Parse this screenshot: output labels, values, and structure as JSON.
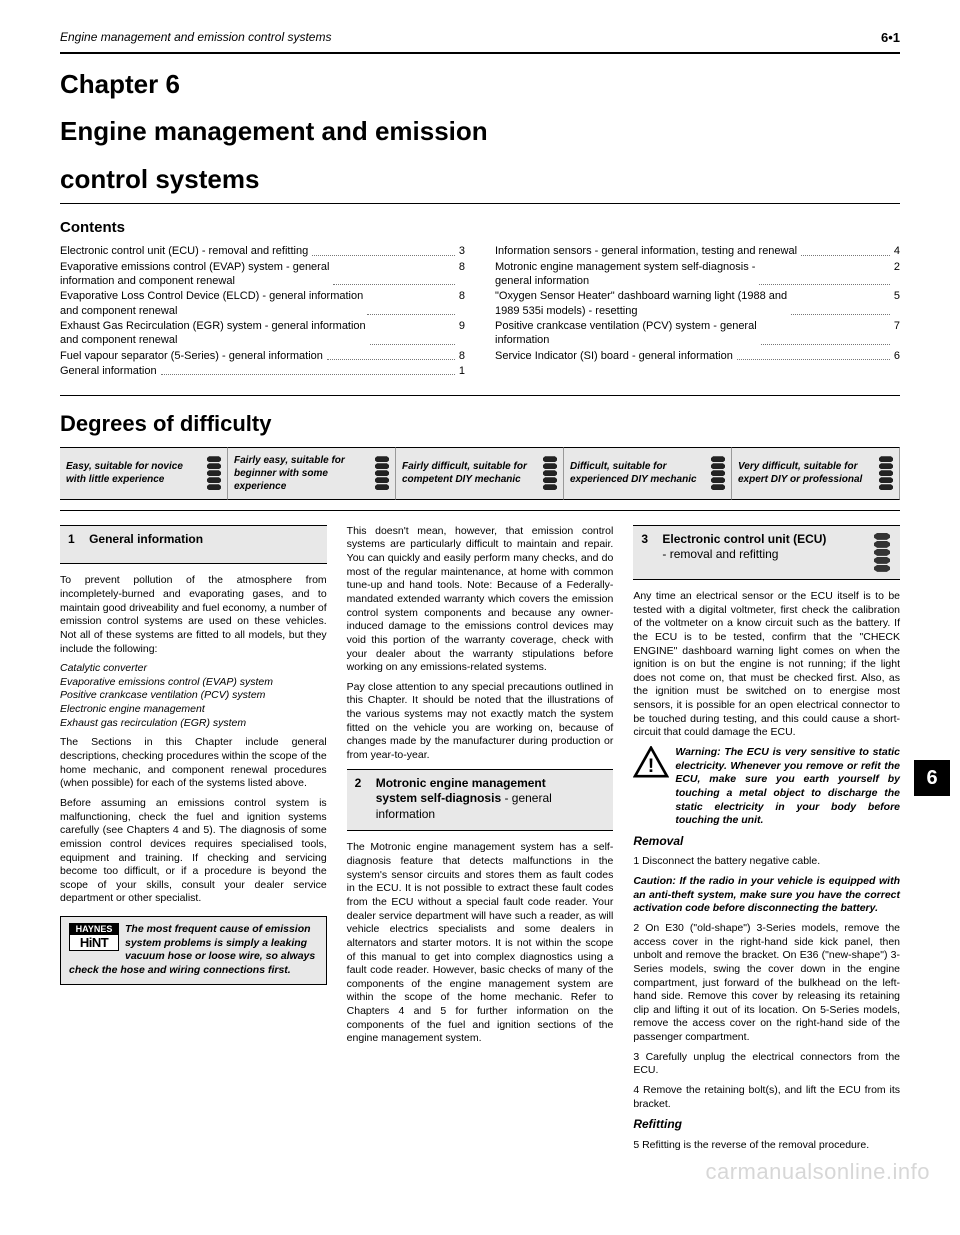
{
  "header": {
    "running": "Engine management and emission control systems",
    "page_ref": "6•1"
  },
  "chapter": {
    "number": "Chapter 6",
    "title_line1": "Engine management and emission",
    "title_line2": "control systems"
  },
  "contents": {
    "heading": "Contents",
    "left": [
      {
        "label": "Electronic control unit (ECU) - removal and refitting",
        "num": "3"
      },
      {
        "label": "Evaporative emissions control (EVAP) system - general\n   information and component renewal",
        "num": "8"
      },
      {
        "label": "Evaporative Loss Control Device (ELCD) - general information\n   and component renewal",
        "num": "8"
      },
      {
        "label": "Exhaust Gas Recirculation (EGR) system - general information\n   and component renewal",
        "num": "9"
      },
      {
        "label": "Fuel vapour separator (5-Series) - general information",
        "num": "8"
      },
      {
        "label": "General information",
        "num": "1"
      }
    ],
    "right": [
      {
        "label": "Information sensors - general information, testing and renewal",
        "num": "4"
      },
      {
        "label": "Motronic engine management system self-diagnosis -\n   general information",
        "num": "2"
      },
      {
        "label": "\"Oxygen Sensor Heater\" dashboard warning light (1988 and\n   1989 535i models) - resetting",
        "num": "5"
      },
      {
        "label": "Positive crankcase ventilation (PCV) system - general\n   information",
        "num": "7"
      },
      {
        "label": "Service Indicator (SI) board - general information",
        "num": "6"
      }
    ]
  },
  "difficulty": {
    "heading": "Degrees of difficulty",
    "levels": [
      {
        "text": "Easy, suitable for novice with little experience",
        "wrenches": 1
      },
      {
        "text": "Fairly easy, suitable for beginner with some experience",
        "wrenches": 2
      },
      {
        "text": "Fairly difficult, suitable for competent DIY mechanic",
        "wrenches": 3
      },
      {
        "text": "Difficult, suitable for experienced DIY mechanic",
        "wrenches": 4
      },
      {
        "text": "Very difficult, suitable for expert DIY or professional",
        "wrenches": 5
      }
    ]
  },
  "sections": {
    "s1": {
      "num": "1",
      "title": "General information"
    },
    "s2": {
      "num": "2",
      "title_bold": "Motronic engine management system self-diagnosis",
      "title_plain": " - general information"
    },
    "s3": {
      "num": "3",
      "title_bold": "Electronic control unit (ECU)",
      "title_plain": "- removal and refitting"
    }
  },
  "col1": {
    "p1": "To prevent pollution of the atmosphere from incompletely-burned and evaporating gases, and to maintain good driveability and fuel economy, a number of emission control systems are used on these vehicles. Not all of these systems are fitted to all models, but they include the following:",
    "list": "Catalytic converter\nEvaporative emissions control (EVAP) system\nPositive crankcase ventilation (PCV) system\nElectronic engine management\nExhaust gas recirculation (EGR) system",
    "p2": "The Sections in this Chapter include general descriptions, checking procedures within the scope of the home mechanic, and component renewal procedures (when possible) for each of the systems listed above.",
    "p3": "Before assuming an emissions control system is malfunctioning, check the fuel and ignition systems carefully (see Chapters 4 and 5). The diagnosis of some emission control devices requires specialised tools, equipment and training. If checking and servicing become too difficult, or if a procedure is beyond the scope of your skills, consult your dealer service department or other specialist.",
    "hint": "The most frequent cause of emission system problems is simply a leaking vacuum hose or loose wire, so always check the hose and wiring connections first."
  },
  "col2": {
    "p1": "This doesn't mean, however, that emission control systems are particularly difficult to maintain and repair. You can quickly and easily perform many checks, and do most of the regular maintenance, at home with common tune-up and hand tools. Note: Because of a Federally-mandated extended warranty which covers the emission control system components and because any owner-induced damage to the emissions control devices may void this portion of the warranty coverage, check with your dealer about the warranty stipulations before working on any emissions-related systems.",
    "p2": "Pay close attention to any special precautions outlined in this Chapter. It should be noted that the illustrations of the various systems may not exactly match the system fitted on the vehicle you are working on, because of changes made by the manufacturer during production or from year-to-year.",
    "p3": "The Motronic engine management system has a self-diagnosis feature that detects malfunctions in the system's sensor circuits and stores them as fault codes in the ECU. It is not possible to extract these fault codes from the ECU without a special fault code reader. Your dealer service department will have such a reader, as will vehicle electrics specialists and some dealers in alternators and starter motors. It is not within the scope of this manual to get into complex diagnostics using a fault code reader. However, basic checks of many of the components of the engine management system are within the scope of the home mechanic. Refer to Chapters 4 and 5 for further information on the components of the fuel and ignition sections of the engine management system."
  },
  "col3": {
    "p1": "Any time an electrical sensor or the ECU itself is to be tested with a digital voltmeter, first check the calibration of the voltmeter on a know circuit such as the battery. If the ECU is to be tested, confirm that the \"CHECK ENGINE\" dashboard warning light comes on when the ignition is on but the engine is not running; if the light does not come on, that must be checked first. Also, as the ignition must be switched on to energise most sensors, it is possible for an open electrical connector to be touched during testing, and this could cause a short-circuit that could damage the ECU.",
    "warn": "Warning: The ECU is very sensitive to static electricity. Whenever you remove or refit the ECU, make sure you earth yourself by touching a metal object to discharge the static electricity in your body before touching the unit.",
    "removal": "Removal",
    "r1": "1 Disconnect the battery negative cable.",
    "r2": "Caution: If the radio in your vehicle is equipped with an anti-theft system, make sure you have the correct activation code before disconnecting the battery.",
    "r3": "2 On E30 (\"old-shape\") 3-Series models, remove the access cover in the right-hand side kick panel, then unbolt and remove the bracket. On E36 (\"new-shape\") 3-Series models, swing the cover down in the engine compartment, just forward of the bulkhead on the left-hand side. Remove this cover by releasing its retaining clip and lifting it out of its location. On 5-Series models, remove the access cover on the right-hand side of the passenger compartment.",
    "r4": "3 Carefully unplug the electrical connectors from the ECU.",
    "r5": "4 Remove the retaining bolt(s), and lift the ECU from its bracket.",
    "refitting": "Refitting",
    "r6": "5 Refitting is the reverse of the removal procedure."
  },
  "sidetab": "6",
  "watermark": "carmanualsonline.info"
}
